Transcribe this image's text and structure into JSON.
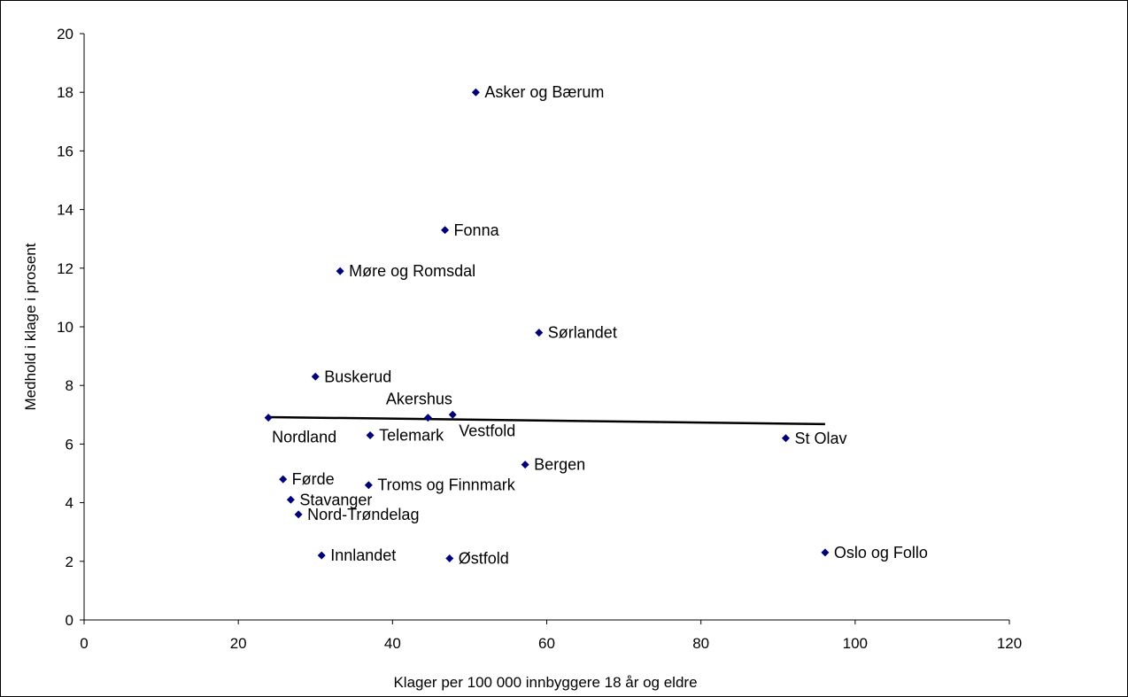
{
  "chart_data": {
    "type": "scatter",
    "xlabel": "Klager per 100 000 innbyggere 18 år og eldre",
    "ylabel": "Medhold i klage i prosent",
    "xlim": [
      0,
      120
    ],
    "ylim": [
      0,
      20
    ],
    "x_ticks": [
      "0",
      "20",
      "40",
      "60",
      "80",
      "100",
      "120"
    ],
    "y_ticks": [
      "0",
      "2",
      "4",
      "6",
      "8",
      "10",
      "12",
      "14",
      "16",
      "18",
      "20"
    ],
    "grid": false,
    "legend": "none",
    "marker": "diamond",
    "colors": {
      "points": "#00007f",
      "trendline": "#000000"
    },
    "points": [
      {
        "label": "Asker og Bærum",
        "x": 50.8,
        "y": 18.0
      },
      {
        "label": "Fonna",
        "x": 46.8,
        "y": 13.3
      },
      {
        "label": "Møre og Romsdal",
        "x": 33.2,
        "y": 11.9
      },
      {
        "label": "Sørlandet",
        "x": 59.0,
        "y": 9.8
      },
      {
        "label": "Buskerud",
        "x": 30.0,
        "y": 8.3
      },
      {
        "label": "Akershus",
        "x": 44.6,
        "y": 6.9
      },
      {
        "label": "Vestfold",
        "x": 47.8,
        "y": 7.0
      },
      {
        "label": "Nordland",
        "x": 23.9,
        "y": 6.9
      },
      {
        "label": "Telemark",
        "x": 37.1,
        "y": 6.3
      },
      {
        "label": "St Olav",
        "x": 91.0,
        "y": 6.2
      },
      {
        "label": "Bergen",
        "x": 57.2,
        "y": 5.3
      },
      {
        "label": "Førde",
        "x": 25.8,
        "y": 4.8
      },
      {
        "label": "Troms og Finnmark",
        "x": 36.9,
        "y": 4.6
      },
      {
        "label": "Stavanger",
        "x": 26.8,
        "y": 4.1
      },
      {
        "label": "Nord-Trøndelag",
        "x": 27.8,
        "y": 3.6
      },
      {
        "label": "Innlandet",
        "x": 30.8,
        "y": 2.2
      },
      {
        "label": "Østfold",
        "x": 47.4,
        "y": 2.1
      },
      {
        "label": "Oslo og Follo",
        "x": 96.1,
        "y": 2.3
      }
    ],
    "trendline": {
      "x": [
        23.9,
        96.1
      ],
      "y": [
        6.92,
        6.68
      ]
    }
  }
}
